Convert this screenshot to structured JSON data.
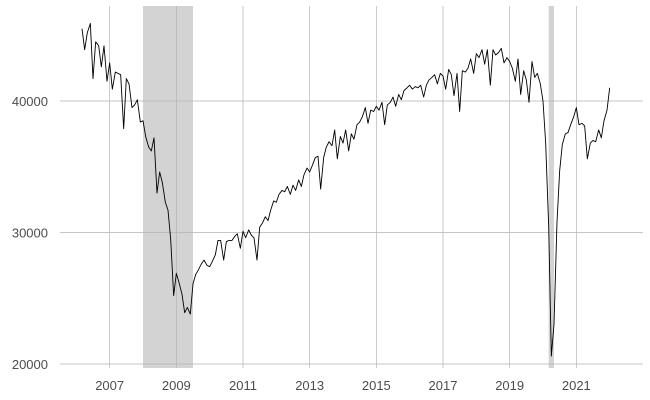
{
  "chart_data": {
    "type": "line",
    "title": "",
    "xlabel": "",
    "ylabel": "",
    "xlim": [
      2006.0,
      2022.0
    ],
    "ylim": [
      20000,
      47000
    ],
    "grid": true,
    "legend": "none",
    "x_ticks": [
      {
        "value": 2007,
        "label": "2007"
      },
      {
        "value": 2009,
        "label": "2009"
      },
      {
        "value": 2011,
        "label": "2011"
      },
      {
        "value": 2013,
        "label": "2013"
      },
      {
        "value": 2015,
        "label": "2015"
      },
      {
        "value": 2017,
        "label": "2017"
      },
      {
        "value": 2019,
        "label": "2019"
      },
      {
        "value": 2021,
        "label": "2021"
      }
    ],
    "y_ticks": [
      {
        "value": 20000,
        "label": "20000"
      },
      {
        "value": 30000,
        "label": "30000"
      },
      {
        "value": 40000,
        "label": "40000"
      }
    ],
    "shaded_periods": [
      {
        "start": 2008.0,
        "end": 2009.5
      },
      {
        "start": 2020.17,
        "end": 2020.33
      }
    ],
    "series": [
      {
        "points": [
          [
            2006.17,
            45500
          ],
          [
            2006.25,
            43900
          ],
          [
            2006.33,
            45200
          ],
          [
            2006.42,
            45900
          ],
          [
            2006.5,
            41700
          ],
          [
            2006.58,
            44500
          ],
          [
            2006.67,
            44200
          ],
          [
            2006.75,
            42600
          ],
          [
            2006.83,
            44200
          ],
          [
            2006.92,
            41500
          ],
          [
            2007.0,
            42900
          ],
          [
            2007.08,
            40900
          ],
          [
            2007.17,
            42200
          ],
          [
            2007.25,
            42100
          ],
          [
            2007.33,
            42000
          ],
          [
            2007.42,
            37900
          ],
          [
            2007.5,
            41700
          ],
          [
            2007.58,
            41300
          ],
          [
            2007.67,
            39500
          ],
          [
            2007.75,
            39700
          ],
          [
            2007.83,
            40100
          ],
          [
            2007.92,
            38400
          ],
          [
            2008.0,
            38500
          ],
          [
            2008.08,
            37300
          ],
          [
            2008.17,
            36500
          ],
          [
            2008.25,
            36200
          ],
          [
            2008.33,
            37200
          ],
          [
            2008.42,
            33000
          ],
          [
            2008.5,
            34600
          ],
          [
            2008.58,
            33800
          ],
          [
            2008.67,
            32300
          ],
          [
            2008.75,
            31700
          ],
          [
            2008.83,
            29500
          ],
          [
            2008.92,
            25200
          ],
          [
            2009.0,
            26900
          ],
          [
            2009.08,
            26200
          ],
          [
            2009.17,
            25300
          ],
          [
            2009.25,
            23900
          ],
          [
            2009.33,
            24300
          ],
          [
            2009.42,
            23800
          ],
          [
            2009.5,
            26100
          ],
          [
            2009.58,
            26800
          ],
          [
            2009.67,
            27200
          ],
          [
            2009.75,
            27600
          ],
          [
            2009.83,
            27900
          ],
          [
            2009.92,
            27500
          ],
          [
            2010.0,
            27400
          ],
          [
            2010.08,
            27800
          ],
          [
            2010.17,
            28300
          ],
          [
            2010.25,
            29400
          ],
          [
            2010.33,
            29400
          ],
          [
            2010.42,
            27900
          ],
          [
            2010.5,
            29300
          ],
          [
            2010.58,
            29400
          ],
          [
            2010.67,
            29400
          ],
          [
            2010.75,
            29700
          ],
          [
            2010.83,
            29900
          ],
          [
            2010.92,
            28800
          ],
          [
            2011.0,
            30100
          ],
          [
            2011.08,
            29600
          ],
          [
            2011.17,
            30200
          ],
          [
            2011.25,
            29800
          ],
          [
            2011.33,
            29600
          ],
          [
            2011.42,
            27900
          ],
          [
            2011.5,
            30400
          ],
          [
            2011.58,
            30700
          ],
          [
            2011.67,
            31200
          ],
          [
            2011.75,
            30900
          ],
          [
            2011.83,
            31700
          ],
          [
            2011.92,
            32400
          ],
          [
            2012.0,
            32300
          ],
          [
            2012.08,
            32900
          ],
          [
            2012.17,
            33200
          ],
          [
            2012.25,
            33100
          ],
          [
            2012.33,
            33500
          ],
          [
            2012.42,
            32900
          ],
          [
            2012.5,
            33600
          ],
          [
            2012.58,
            33200
          ],
          [
            2012.67,
            34000
          ],
          [
            2012.75,
            33500
          ],
          [
            2012.83,
            34400
          ],
          [
            2012.92,
            34900
          ],
          [
            2013.0,
            34600
          ],
          [
            2013.08,
            35100
          ],
          [
            2013.17,
            35700
          ],
          [
            2013.25,
            35800
          ],
          [
            2013.33,
            33300
          ],
          [
            2013.42,
            35700
          ],
          [
            2013.5,
            36500
          ],
          [
            2013.58,
            36900
          ],
          [
            2013.67,
            36600
          ],
          [
            2013.75,
            37800
          ],
          [
            2013.83,
            35600
          ],
          [
            2013.92,
            37300
          ],
          [
            2014.0,
            36800
          ],
          [
            2014.08,
            37800
          ],
          [
            2014.17,
            36200
          ],
          [
            2014.25,
            37500
          ],
          [
            2014.33,
            37100
          ],
          [
            2014.42,
            38200
          ],
          [
            2014.5,
            38400
          ],
          [
            2014.58,
            38800
          ],
          [
            2014.67,
            39500
          ],
          [
            2014.75,
            38300
          ],
          [
            2014.83,
            39300
          ],
          [
            2014.92,
            39200
          ],
          [
            2015.0,
            39600
          ],
          [
            2015.08,
            39300
          ],
          [
            2015.17,
            39900
          ],
          [
            2015.25,
            38200
          ],
          [
            2015.33,
            39700
          ],
          [
            2015.42,
            39900
          ],
          [
            2015.5,
            40300
          ],
          [
            2015.58,
            39600
          ],
          [
            2015.67,
            40500
          ],
          [
            2015.75,
            40100
          ],
          [
            2015.83,
            40800
          ],
          [
            2015.92,
            41000
          ],
          [
            2016.0,
            41200
          ],
          [
            2016.08,
            40900
          ],
          [
            2016.17,
            41100
          ],
          [
            2016.25,
            41000
          ],
          [
            2016.33,
            41200
          ],
          [
            2016.42,
            40300
          ],
          [
            2016.5,
            41200
          ],
          [
            2016.58,
            41600
          ],
          [
            2016.67,
            41800
          ],
          [
            2016.75,
            42000
          ],
          [
            2016.83,
            41300
          ],
          [
            2016.92,
            42100
          ],
          [
            2017.0,
            41900
          ],
          [
            2017.08,
            40900
          ],
          [
            2017.17,
            42400
          ],
          [
            2017.25,
            42000
          ],
          [
            2017.33,
            40400
          ],
          [
            2017.42,
            42100
          ],
          [
            2017.5,
            39200
          ],
          [
            2017.58,
            42300
          ],
          [
            2017.67,
            42200
          ],
          [
            2017.75,
            42500
          ],
          [
            2017.83,
            43200
          ],
          [
            2017.92,
            42100
          ],
          [
            2018.0,
            43600
          ],
          [
            2018.08,
            43300
          ],
          [
            2018.17,
            43900
          ],
          [
            2018.25,
            42800
          ],
          [
            2018.33,
            43900
          ],
          [
            2018.42,
            41200
          ],
          [
            2018.5,
            43900
          ],
          [
            2018.58,
            43500
          ],
          [
            2018.67,
            43700
          ],
          [
            2018.75,
            44000
          ],
          [
            2018.83,
            42900
          ],
          [
            2018.92,
            43300
          ],
          [
            2019.0,
            43000
          ],
          [
            2019.08,
            42500
          ],
          [
            2019.17,
            41500
          ],
          [
            2019.25,
            43200
          ],
          [
            2019.33,
            40500
          ],
          [
            2019.42,
            42300
          ],
          [
            2019.5,
            41600
          ],
          [
            2019.58,
            39900
          ],
          [
            2019.67,
            43000
          ],
          [
            2019.75,
            41800
          ],
          [
            2019.83,
            42100
          ],
          [
            2019.92,
            41300
          ],
          [
            2020.0,
            40000
          ],
          [
            2020.08,
            36800
          ],
          [
            2020.17,
            30500
          ],
          [
            2020.25,
            20600
          ],
          [
            2020.33,
            23000
          ],
          [
            2020.42,
            30800
          ],
          [
            2020.5,
            34700
          ],
          [
            2020.58,
            36700
          ],
          [
            2020.67,
            37500
          ],
          [
            2020.75,
            37600
          ],
          [
            2020.83,
            38200
          ],
          [
            2020.92,
            38800
          ],
          [
            2021.0,
            39500
          ],
          [
            2021.08,
            38200
          ],
          [
            2021.17,
            38300
          ],
          [
            2021.25,
            38100
          ],
          [
            2021.33,
            35600
          ],
          [
            2021.42,
            36800
          ],
          [
            2021.5,
            37000
          ],
          [
            2021.58,
            36900
          ],
          [
            2021.67,
            37800
          ],
          [
            2021.75,
            37200
          ],
          [
            2021.83,
            38500
          ],
          [
            2021.92,
            39300
          ],
          [
            2022.0,
            41000
          ]
        ]
      }
    ]
  },
  "colors": {
    "line": "#000000",
    "recession": "#d3d3d3",
    "grid": "#b3b3b3",
    "tick_text": "#4d4d4d",
    "background": "#ffffff"
  }
}
